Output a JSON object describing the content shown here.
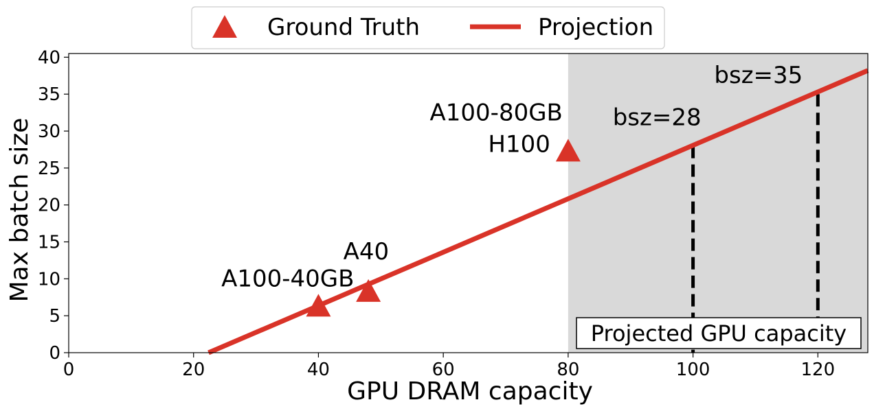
{
  "colors": {
    "projection": "#d93328",
    "ground_truth": "#d93328",
    "shaded_region": "#d9d9d9",
    "threshold_lines": "#000000"
  },
  "chart_data": {
    "type": "scatter+line",
    "xlabel": "GPU DRAM capacity",
    "ylabel": "Max batch size",
    "xlim": [
      0,
      128
    ],
    "ylim": [
      0,
      40.5
    ],
    "x_ticks": [
      0,
      20,
      40,
      60,
      80,
      100,
      120
    ],
    "y_ticks": [
      0,
      5,
      10,
      15,
      20,
      25,
      30,
      35,
      40
    ],
    "grid": false,
    "legend": {
      "placement": "top-center-outside",
      "entries": [
        {
          "label": "Ground Truth",
          "marker": "triangle-up"
        },
        {
          "label": "Projection",
          "marker": "line"
        }
      ]
    },
    "ground_truth": [
      {
        "x": 40,
        "y": 6,
        "label": "A100-40GB"
      },
      {
        "x": 48,
        "y": 8,
        "label": "A40"
      },
      {
        "x": 80,
        "y": 27,
        "label": "H100"
      },
      {
        "x": 80,
        "y": 27,
        "label": "A100-80GB"
      }
    ],
    "projection": {
      "x": [
        22.4,
        128
      ],
      "y": [
        0,
        38.2
      ]
    },
    "shaded_region": {
      "x_start": 80,
      "x_end": 128,
      "label": "Projected GPU capacity"
    },
    "threshold_lines": [
      {
        "x": 100,
        "y": 28,
        "label": "bsz=28"
      },
      {
        "x": 120,
        "y": 35,
        "label": "bsz=35"
      }
    ]
  }
}
